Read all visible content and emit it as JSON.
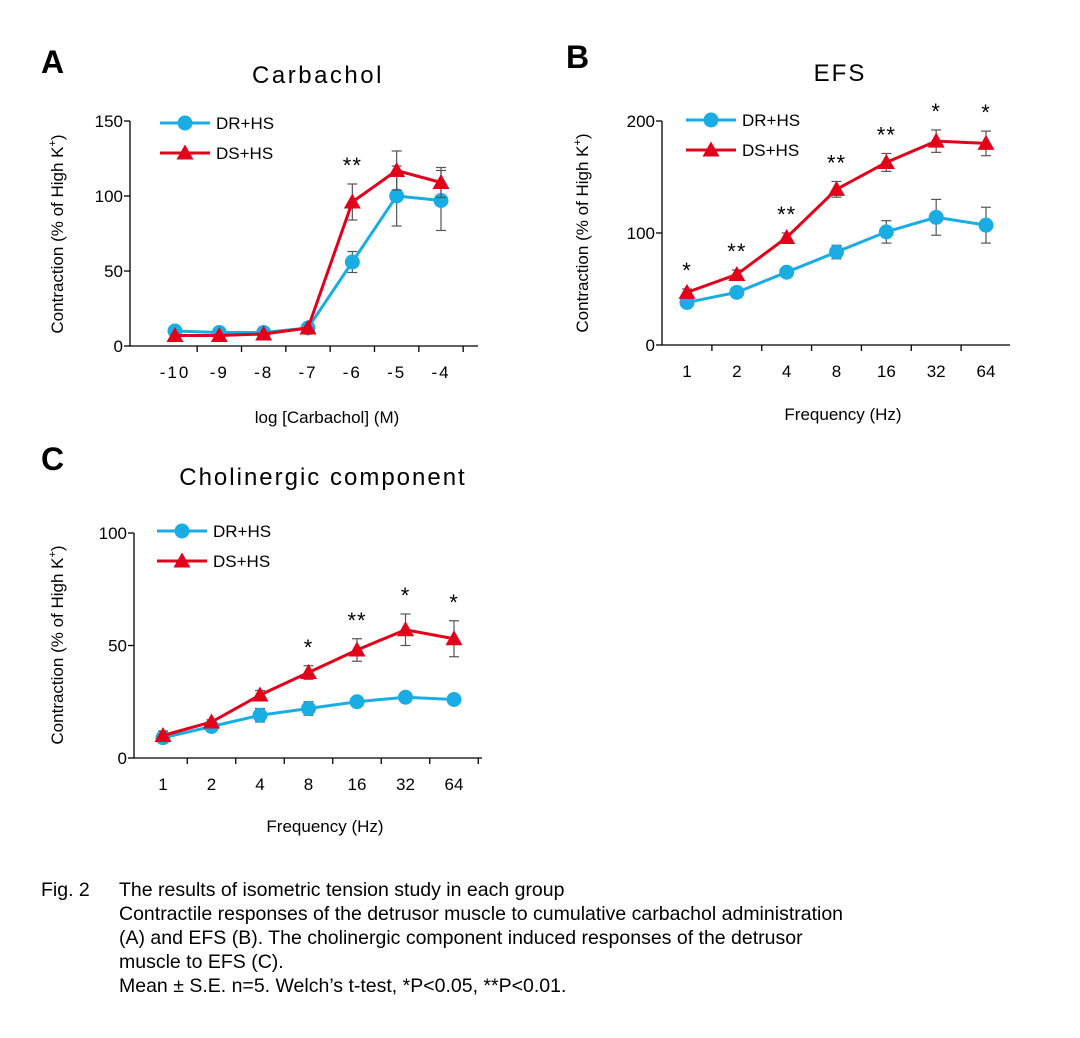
{
  "chart_data": [
    {
      "type": "line",
      "panel_label": "A",
      "title": "Carbachol",
      "xlabel": "log [Carbachol] (M)",
      "ylabel": "Contraction (% of High K+)",
      "ylabel_main": "Contraction (% of High K",
      "ylabel_sup": "+",
      "ylabel_close": ")",
      "categories": [
        "-10",
        "-9",
        "-8",
        "-7",
        "-6",
        "-5",
        "-4"
      ],
      "ylim": [
        0,
        150
      ],
      "yticks": [
        0,
        50,
        100,
        150
      ],
      "legend_position": "top-left",
      "series": [
        {
          "name": "DR+HS",
          "color": "#1aade3",
          "marker": "circle",
          "values": [
            10,
            9,
            9,
            12,
            56,
            100,
            97
          ],
          "errors": [
            0,
            0,
            0,
            0,
            7,
            20,
            20
          ]
        },
        {
          "name": "DS+HS",
          "color": "#e2001a",
          "marker": "triangle",
          "values": [
            7,
            7,
            8,
            12,
            96,
            117,
            109
          ],
          "errors": [
            0,
            0,
            0,
            0,
            12,
            13,
            10
          ]
        }
      ],
      "significance": [
        "",
        "",
        "",
        "",
        "**",
        "",
        ""
      ]
    },
    {
      "type": "line",
      "panel_label": "B",
      "title": "EFS",
      "xlabel": "Frequency (Hz)",
      "ylabel": "Contraction (% of High K+)",
      "ylabel_main": "Contraction (% of High K",
      "ylabel_sup": "+",
      "ylabel_close": ")",
      "categories": [
        "1",
        "2",
        "4",
        "8",
        "16",
        "32",
        "64"
      ],
      "ylim": [
        0,
        200
      ],
      "yticks": [
        0,
        100,
        200
      ],
      "legend_position": "top-left",
      "series": [
        {
          "name": "DR+HS",
          "color": "#1aade3",
          "marker": "circle",
          "values": [
            38,
            47,
            65,
            83,
            101,
            114,
            107
          ],
          "errors": [
            4,
            4,
            4,
            6,
            10,
            16,
            16
          ]
        },
        {
          "name": "DS+HS",
          "color": "#e2001a",
          "marker": "triangle",
          "values": [
            47,
            63,
            96,
            139,
            163,
            182,
            180
          ],
          "errors": [
            3,
            4,
            4,
            7,
            8,
            10,
            11
          ]
        }
      ],
      "significance": [
        "*",
        "**",
        "**",
        "**",
        "**",
        "*",
        "*"
      ]
    },
    {
      "type": "line",
      "panel_label": "C",
      "title": "Cholinergic component",
      "xlabel": "Frequency (Hz)",
      "ylabel": "Contraction (% of High K+)",
      "ylabel_main": "Contraction (% of High K",
      "ylabel_sup": "+",
      "ylabel_close": ")",
      "categories": [
        "1",
        "2",
        "4",
        "8",
        "16",
        "32",
        "64"
      ],
      "ylim": [
        0,
        100
      ],
      "yticks": [
        0,
        50,
        100
      ],
      "legend_position": "top-left",
      "series": [
        {
          "name": "DR+HS",
          "color": "#1aade3",
          "marker": "circle",
          "values": [
            9,
            14,
            19,
            22,
            25,
            27,
            26
          ],
          "errors": [
            2,
            1,
            3,
            3,
            2,
            2,
            1
          ]
        },
        {
          "name": "DS+HS",
          "color": "#e2001a",
          "marker": "triangle",
          "values": [
            10,
            16,
            28,
            38,
            48,
            57,
            53
          ],
          "errors": [
            2,
            1,
            2,
            3,
            5,
            7,
            8
          ]
        }
      ],
      "significance": [
        "",
        "",
        "",
        "*",
        "**",
        "*",
        "*"
      ]
    }
  ],
  "caption": {
    "label": "Fig. 2",
    "title": "The results of isometric tension study in each group",
    "lines": [
      "Contractile responses of the detrusor muscle to cumulative carbachol administration",
      "(A) and EFS (B). The cholinergic component induced responses of the detrusor",
      "muscle to EFS (C).",
      "Mean ± S.E. n=5. Welch’s t-test, *P<0.05, **P<0.01."
    ]
  }
}
